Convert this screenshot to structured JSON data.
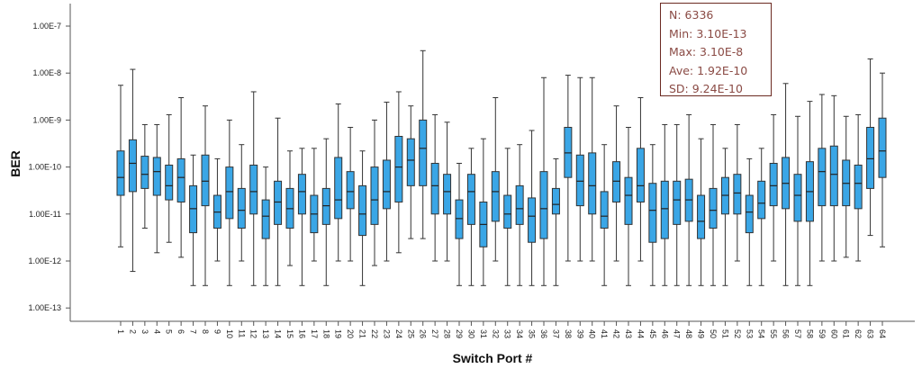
{
  "chart_data": {
    "type": "boxplot",
    "title": "",
    "xlabel": "Switch Port #",
    "ylabel": "BER",
    "yscale": "log",
    "ylim": [
      3e-14,
      1.3e-07
    ],
    "yticks": [
      {
        "value": 1e-07,
        "label": "1.00E-7"
      },
      {
        "value": 1e-08,
        "label": "1.00E-8"
      },
      {
        "value": 1e-09,
        "label": "1.00E-9"
      },
      {
        "value": 1e-10,
        "label": "1.00E-10"
      },
      {
        "value": 1e-11,
        "label": "1.00E-11"
      },
      {
        "value": 1e-12,
        "label": "1.00E-12"
      },
      {
        "value": 1e-13,
        "label": "1.00E-13"
      }
    ],
    "box_color": "#3aa6e6",
    "grid": false,
    "categories": [
      "1",
      "2",
      "3",
      "4",
      "5",
      "6",
      "7",
      "8",
      "9",
      "10",
      "11",
      "12",
      "13",
      "14",
      "15",
      "16",
      "17",
      "18",
      "19",
      "20",
      "21",
      "22",
      "23",
      "24",
      "25",
      "26",
      "27",
      "28",
      "29",
      "30",
      "31",
      "32",
      "33",
      "34",
      "35",
      "36",
      "37",
      "38",
      "39",
      "40",
      "41",
      "42",
      "43",
      "44",
      "45",
      "46",
      "47",
      "48",
      "49",
      "50",
      "51",
      "52",
      "53",
      "54",
      "55",
      "56",
      "57",
      "58",
      "59",
      "60",
      "61",
      "62",
      "63",
      "64"
    ],
    "boxes": [
      {
        "min": 2e-12,
        "q1": 2.5e-11,
        "median": 6e-11,
        "q3": 2.2e-10,
        "max": 5.5e-09
      },
      {
        "min": 6e-13,
        "q1": 3e-11,
        "median": 1.2e-10,
        "q3": 3.8e-10,
        "max": 1.2e-08
      },
      {
        "min": 5e-12,
        "q1": 3.5e-11,
        "median": 7e-11,
        "q3": 1.7e-10,
        "max": 8e-10
      },
      {
        "min": 1.5e-12,
        "q1": 2.5e-11,
        "median": 8e-11,
        "q3": 1.6e-10,
        "max": 8e-10
      },
      {
        "min": 2.5e-12,
        "q1": 2e-11,
        "median": 4e-11,
        "q3": 1.1e-10,
        "max": 1.3e-09
      },
      {
        "min": 1.2e-12,
        "q1": 1.8e-11,
        "median": 6e-11,
        "q3": 1.5e-10,
        "max": 3e-09
      },
      {
        "min": 3e-13,
        "q1": 4e-12,
        "median": 1.3e-11,
        "q3": 4e-11,
        "max": 1.8e-10
      },
      {
        "min": 3e-13,
        "q1": 1.5e-11,
        "median": 5e-11,
        "q3": 1.8e-10,
        "max": 2e-09
      },
      {
        "min": 1e-12,
        "q1": 5e-12,
        "median": 1.1e-11,
        "q3": 2.5e-11,
        "max": 1.5e-10
      },
      {
        "min": 3e-13,
        "q1": 8e-12,
        "median": 3e-11,
        "q3": 1e-10,
        "max": 1e-09
      },
      {
        "min": 1e-12,
        "q1": 5e-12,
        "median": 1.2e-11,
        "q3": 3.5e-11,
        "max": 3e-10
      },
      {
        "min": 3e-13,
        "q1": 1e-11,
        "median": 3e-11,
        "q3": 1.1e-10,
        "max": 4e-09
      },
      {
        "min": 3e-13,
        "q1": 3e-12,
        "median": 9e-12,
        "q3": 2e-11,
        "max": 1e-10
      },
      {
        "min": 3e-13,
        "q1": 6e-12,
        "median": 1.8e-11,
        "q3": 5e-11,
        "max": 1.1e-09
      },
      {
        "min": 8e-13,
        "q1": 5e-12,
        "median": 1.3e-11,
        "q3": 3.5e-11,
        "max": 2.2e-10
      },
      {
        "min": 3e-13,
        "q1": 1e-11,
        "median": 3e-11,
        "q3": 7e-11,
        "max": 2.5e-10
      },
      {
        "min": 1e-12,
        "q1": 4e-12,
        "median": 1e-11,
        "q3": 2.5e-11,
        "max": 2.5e-10
      },
      {
        "min": 3e-13,
        "q1": 6e-12,
        "median": 1.5e-11,
        "q3": 3.5e-11,
        "max": 4e-10
      },
      {
        "min": 1e-12,
        "q1": 8e-12,
        "median": 2e-11,
        "q3": 1.6e-10,
        "max": 2.2e-09
      },
      {
        "min": 1e-12,
        "q1": 1.3e-11,
        "median": 3e-11,
        "q3": 8e-11,
        "max": 7e-10
      },
      {
        "min": 3e-13,
        "q1": 3.5e-12,
        "median": 1e-11,
        "q3": 4e-11,
        "max": 2.2e-10
      },
      {
        "min": 8e-13,
        "q1": 6e-12,
        "median": 2e-11,
        "q3": 1e-10,
        "max": 1e-09
      },
      {
        "min": 1e-12,
        "q1": 1.3e-11,
        "median": 3e-11,
        "q3": 1.4e-10,
        "max": 2.4e-09
      },
      {
        "min": 1.5e-12,
        "q1": 1.8e-11,
        "median": 1e-10,
        "q3": 4.5e-10,
        "max": 4e-09
      },
      {
        "min": 3e-12,
        "q1": 4e-11,
        "median": 1.4e-10,
        "q3": 4e-10,
        "max": 2e-09
      },
      {
        "min": 3e-12,
        "q1": 4e-11,
        "median": 2.5e-10,
        "q3": 1e-09,
        "max": 3e-08
      },
      {
        "min": 1e-12,
        "q1": 1e-11,
        "median": 4e-11,
        "q3": 1.2e-10,
        "max": 1.3e-09
      },
      {
        "min": 1e-12,
        "q1": 1e-11,
        "median": 3e-11,
        "q3": 7e-11,
        "max": 9e-10
      },
      {
        "min": 3e-13,
        "q1": 3e-12,
        "median": 8e-12,
        "q3": 2e-11,
        "max": 1.2e-10
      },
      {
        "min": 3e-13,
        "q1": 6e-12,
        "median": 3e-11,
        "q3": 7e-11,
        "max": 2.5e-10
      },
      {
        "min": 3e-13,
        "q1": 2e-12,
        "median": 6e-12,
        "q3": 1.8e-11,
        "max": 4e-10
      },
      {
        "min": 1e-12,
        "q1": 7e-12,
        "median": 3e-11,
        "q3": 8e-11,
        "max": 3e-09
      },
      {
        "min": 3e-13,
        "q1": 5e-12,
        "median": 1e-11,
        "q3": 2.5e-11,
        "max": 2.5e-10
      },
      {
        "min": 3e-13,
        "q1": 6e-12,
        "median": 1.3e-11,
        "q3": 4e-11,
        "max": 3e-10
      },
      {
        "min": 3e-13,
        "q1": 2.5e-12,
        "median": 9e-12,
        "q3": 2.2e-11,
        "max": 6e-10
      },
      {
        "min": 3e-13,
        "q1": 3e-12,
        "median": 1.3e-11,
        "q3": 8e-11,
        "max": 8e-09
      },
      {
        "min": 3e-13,
        "q1": 1e-11,
        "median": 1.6e-11,
        "q3": 3.5e-11,
        "max": 1.5e-10
      },
      {
        "min": 1e-12,
        "q1": 6e-11,
        "median": 2e-10,
        "q3": 7e-10,
        "max": 9e-09
      },
      {
        "min": 1e-12,
        "q1": 1.5e-11,
        "median": 5e-11,
        "q3": 1.8e-10,
        "max": 8e-09
      },
      {
        "min": 1e-12,
        "q1": 1e-11,
        "median": 4e-11,
        "q3": 2e-10,
        "max": 8e-09
      },
      {
        "min": 3e-13,
        "q1": 5e-12,
        "median": 9e-12,
        "q3": 3e-11,
        "max": 3e-10
      },
      {
        "min": 1e-12,
        "q1": 1.8e-11,
        "median": 5e-11,
        "q3": 1.3e-10,
        "max": 2e-09
      },
      {
        "min": 3e-13,
        "q1": 6e-12,
        "median": 2.5e-11,
        "q3": 6e-11,
        "max": 7e-10
      },
      {
        "min": 1e-12,
        "q1": 1.8e-11,
        "median": 4e-11,
        "q3": 2.5e-10,
        "max": 3e-09
      },
      {
        "min": 3e-13,
        "q1": 2.5e-12,
        "median": 1.2e-11,
        "q3": 4.5e-11,
        "max": 3e-10
      },
      {
        "min": 3e-13,
        "q1": 3e-12,
        "median": 1.3e-11,
        "q3": 5e-11,
        "max": 8e-10
      },
      {
        "min": 3e-13,
        "q1": 6e-12,
        "median": 2e-11,
        "q3": 5e-11,
        "max": 8e-10
      },
      {
        "min": 3e-13,
        "q1": 7e-12,
        "median": 2e-11,
        "q3": 5.5e-11,
        "max": 1.3e-09
      },
      {
        "min": 3e-13,
        "q1": 3e-12,
        "median": 7e-12,
        "q3": 2.5e-11,
        "max": 4e-10
      },
      {
        "min": 3e-13,
        "q1": 5e-12,
        "median": 1.2e-11,
        "q3": 3.5e-11,
        "max": 8e-10
      },
      {
        "min": 3e-13,
        "q1": 1e-11,
        "median": 2.5e-11,
        "q3": 6e-11,
        "max": 2.5e-10
      },
      {
        "min": 1e-12,
        "q1": 1e-11,
        "median": 2.8e-11,
        "q3": 7e-11,
        "max": 8e-10
      },
      {
        "min": 3e-13,
        "q1": 4e-12,
        "median": 1.1e-11,
        "q3": 2.5e-11,
        "max": 1.5e-10
      },
      {
        "min": 3e-13,
        "q1": 8e-12,
        "median": 1.7e-11,
        "q3": 5e-11,
        "max": 2.5e-10
      },
      {
        "min": 1e-12,
        "q1": 1.5e-11,
        "median": 4e-11,
        "q3": 1.2e-10,
        "max": 1.3e-09
      },
      {
        "min": 3e-13,
        "q1": 1.3e-11,
        "median": 4.5e-11,
        "q3": 1.6e-10,
        "max": 6e-09
      },
      {
        "min": 3e-13,
        "q1": 7e-12,
        "median": 2.5e-11,
        "q3": 7e-11,
        "max": 1.2e-09
      },
      {
        "min": 3e-13,
        "q1": 7e-12,
        "median": 3e-11,
        "q3": 1.3e-10,
        "max": 2.5e-09
      },
      {
        "min": 1e-12,
        "q1": 1.5e-11,
        "median": 8e-11,
        "q3": 2.5e-10,
        "max": 3.5e-09
      },
      {
        "min": 1e-12,
        "q1": 1.5e-11,
        "median": 7e-11,
        "q3": 2.8e-10,
        "max": 3.3e-09
      },
      {
        "min": 1.2e-12,
        "q1": 1.5e-11,
        "median": 4.5e-11,
        "q3": 1.4e-10,
        "max": 1.2e-09
      },
      {
        "min": 1e-12,
        "q1": 1.3e-11,
        "median": 4.5e-11,
        "q3": 1.1e-10,
        "max": 1.3e-09
      },
      {
        "min": 3.5e-12,
        "q1": 3.5e-11,
        "median": 1.5e-10,
        "q3": 7e-10,
        "max": 2e-08
      },
      {
        "min": 2e-12,
        "q1": 6e-11,
        "median": 2.2e-10,
        "q3": 1.1e-09,
        "max": 1e-08
      }
    ],
    "annotation": {
      "placement": "top-right",
      "lines": [
        "N: 6336",
        "Min: 3.10E-13",
        "Max: 3.10E-8",
        "Ave: 1.92E-10",
        "SD: 9.24E-10"
      ]
    }
  }
}
